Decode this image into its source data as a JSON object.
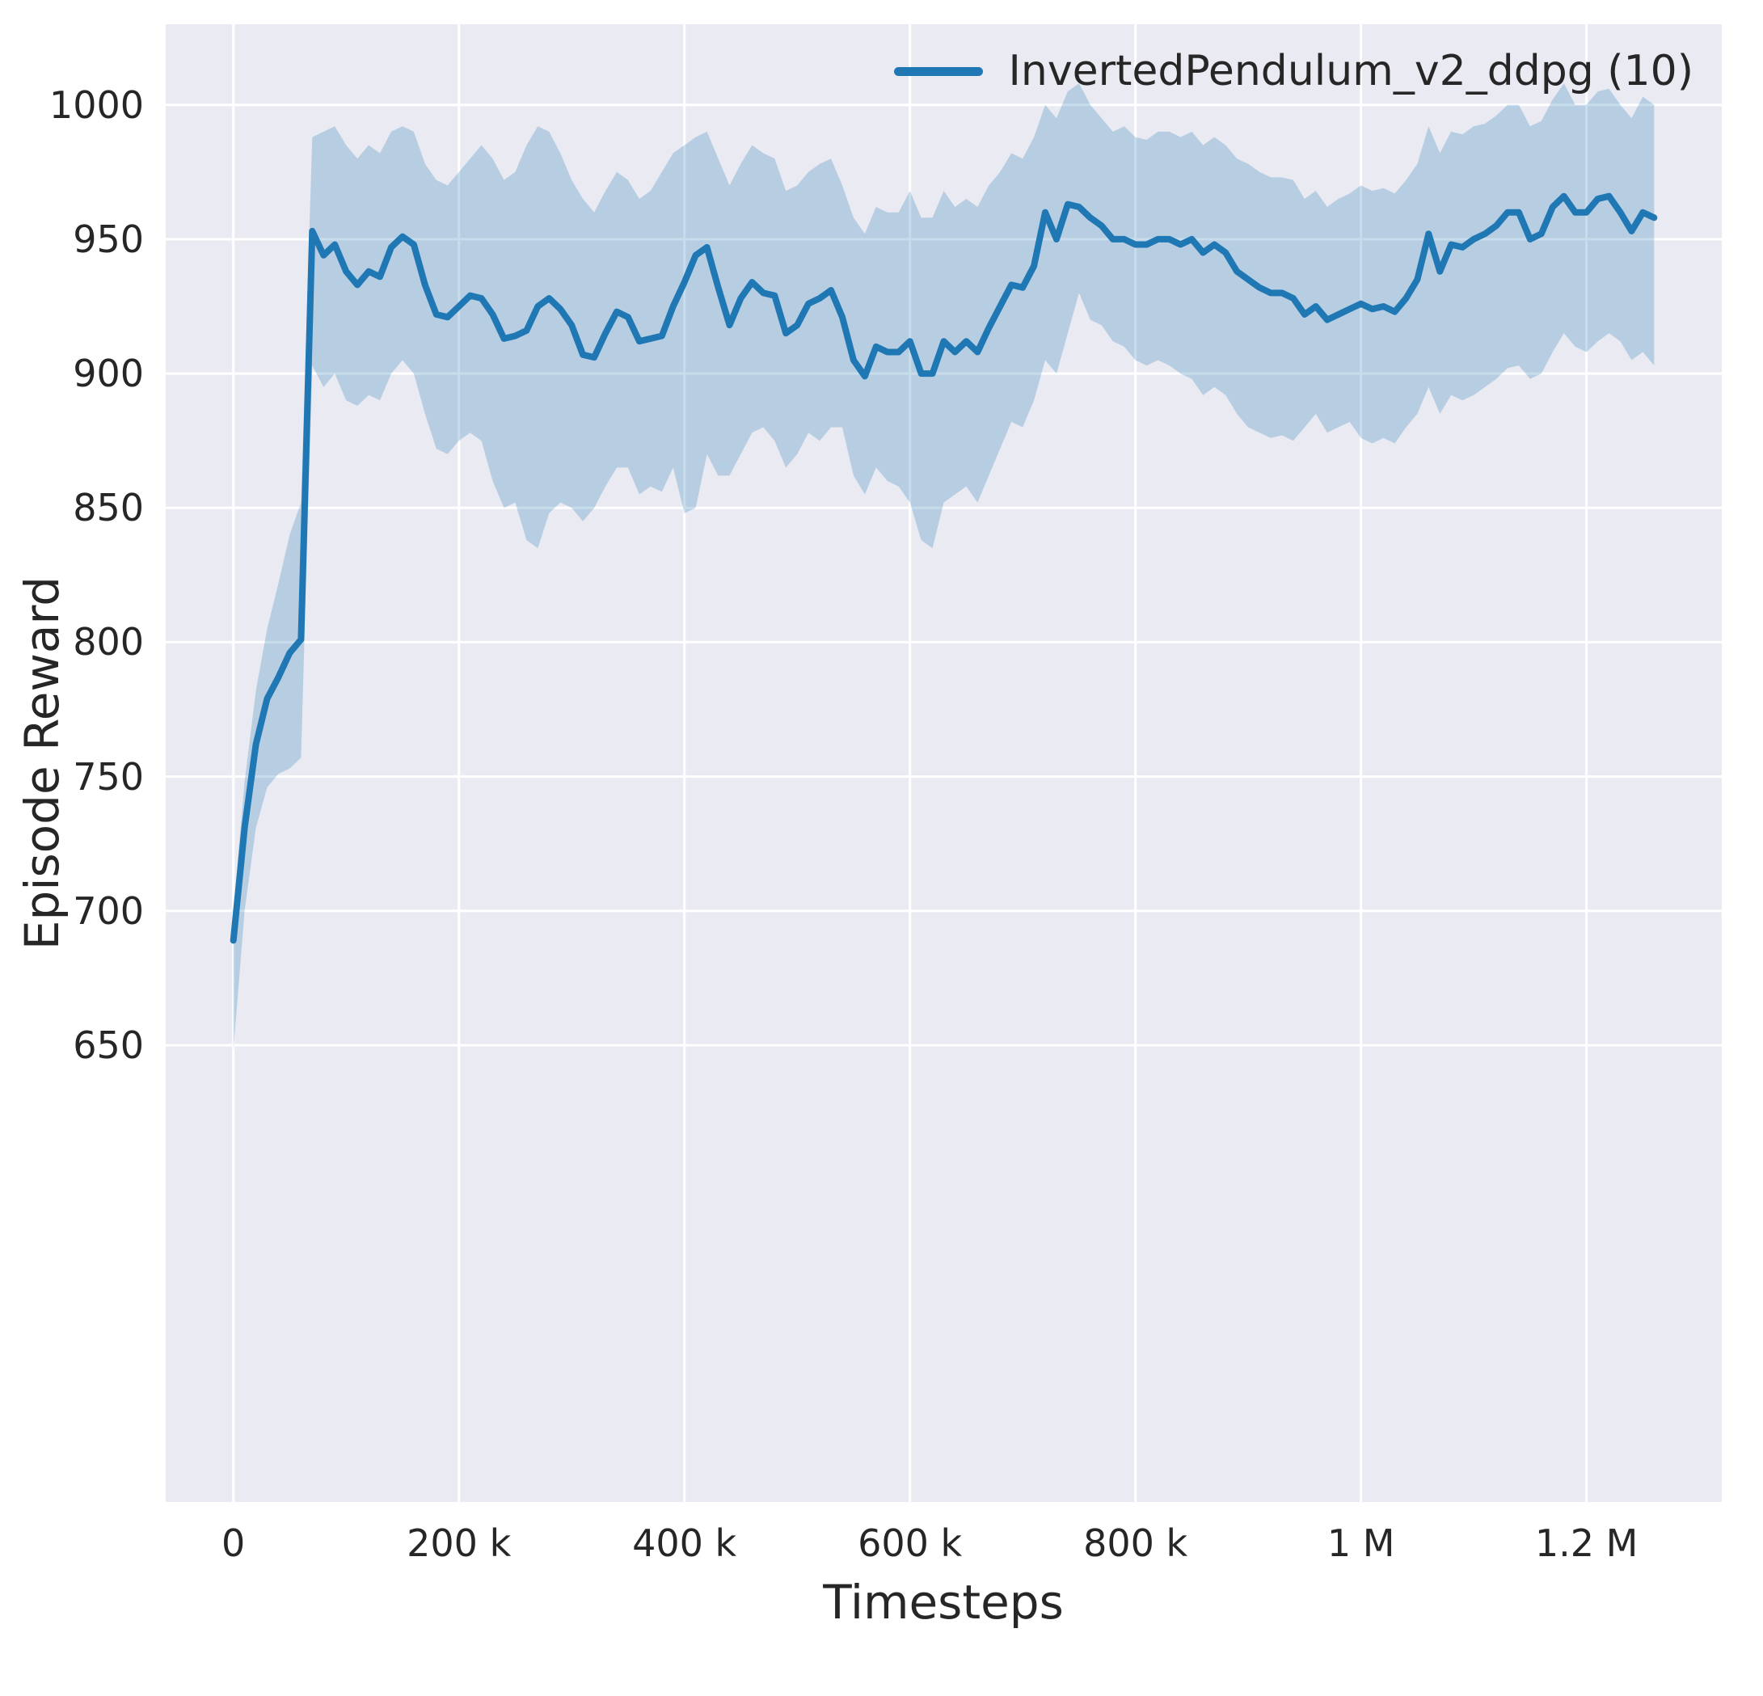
{
  "colors": {
    "line": "#1f77b4",
    "band": "#1f77b4",
    "band_opacity": 0.25,
    "plot_background": "#eaeaf2",
    "grid": "#ffffff",
    "text": "#262626"
  },
  "chart_data": {
    "type": "line",
    "title": "",
    "xlabel": "Timesteps",
    "ylabel": "Episode Reward",
    "grid": true,
    "legend_position": "upper right",
    "x_units": "timesteps (values stored in thousands)",
    "xlim_thousands": [
      -60,
      1320
    ],
    "ylim": [
      480,
      1030
    ],
    "xticks": {
      "values_thousands": [
        0,
        200,
        400,
        600,
        800,
        1000,
        1200
      ],
      "labels": [
        "0",
        "200 k",
        "400 k",
        "600 k",
        "800 k",
        "1 M",
        "1.2 M"
      ]
    },
    "yticks": {
      "values": [
        650,
        700,
        750,
        800,
        850,
        900,
        950,
        1000
      ],
      "labels": [
        "650",
        "700",
        "750",
        "800",
        "850",
        "900",
        "950",
        "1000"
      ]
    },
    "series": [
      {
        "name": "InvertedPendulum_v2_ddpg (10)",
        "color": "#1f77b4",
        "x_thousands": [
          0,
          10,
          20,
          30,
          40,
          50,
          60,
          70,
          80,
          90,
          100,
          110,
          120,
          130,
          140,
          150,
          160,
          170,
          180,
          190,
          200,
          210,
          220,
          230,
          240,
          250,
          260,
          270,
          280,
          290,
          300,
          310,
          320,
          330,
          340,
          350,
          360,
          370,
          380,
          390,
          400,
          410,
          420,
          430,
          440,
          450,
          460,
          470,
          480,
          490,
          500,
          510,
          520,
          530,
          540,
          550,
          560,
          570,
          580,
          590,
          600,
          610,
          620,
          630,
          640,
          650,
          660,
          670,
          680,
          690,
          700,
          710,
          720,
          730,
          740,
          750,
          760,
          770,
          780,
          790,
          800,
          810,
          820,
          830,
          840,
          850,
          860,
          870,
          880,
          890,
          900,
          910,
          920,
          930,
          940,
          950,
          960,
          970,
          980,
          990,
          1000,
          1010,
          1020,
          1030,
          1040,
          1050,
          1060,
          1070,
          1080,
          1090,
          1100,
          1110,
          1120,
          1130,
          1140,
          1150,
          1160,
          1170,
          1180,
          1190,
          1200,
          1210,
          1220,
          1230,
          1240,
          1250,
          1260
        ],
        "mean": [
          689,
          731,
          762,
          779,
          787,
          796,
          801,
          953,
          944,
          948,
          938,
          933,
          938,
          936,
          947,
          951,
          948,
          933,
          922,
          921,
          925,
          929,
          928,
          922,
          913,
          914,
          916,
          925,
          928,
          924,
          918,
          907,
          906,
          915,
          923,
          921,
          912,
          913,
          914,
          925,
          934,
          944,
          947,
          932,
          918,
          928,
          934,
          930,
          929,
          915,
          918,
          926,
          928,
          931,
          921,
          905,
          899,
          910,
          908,
          908,
          912,
          900,
          900,
          912,
          908,
          912,
          908,
          917,
          925,
          933,
          932,
          940,
          960,
          950,
          963,
          962,
          958,
          955,
          950,
          950,
          948,
          948,
          950,
          950,
          948,
          950,
          945,
          948,
          945,
          938,
          935,
          932,
          930,
          930,
          928,
          922,
          925,
          920,
          922,
          924,
          926,
          924,
          925,
          923,
          928,
          935,
          952,
          938,
          948,
          947,
          950,
          952,
          955,
          960,
          960,
          950,
          952,
          962,
          966,
          960,
          960,
          965,
          966,
          960,
          953,
          960,
          958
        ],
        "band_lower": [
          648,
          700,
          731,
          746,
          751,
          753,
          757,
          903,
          895,
          900,
          890,
          888,
          892,
          890,
          900,
          905,
          900,
          885,
          872,
          870,
          875,
          878,
          875,
          860,
          850,
          852,
          838,
          835,
          848,
          852,
          850,
          845,
          850,
          858,
          865,
          865,
          855,
          858,
          856,
          865,
          848,
          850,
          870,
          862,
          862,
          870,
          878,
          880,
          875,
          865,
          870,
          878,
          875,
          880,
          880,
          862,
          855,
          865,
          860,
          858,
          852,
          838,
          835,
          852,
          855,
          858,
          852,
          862,
          872,
          882,
          880,
          890,
          905,
          900,
          915,
          930,
          920,
          918,
          912,
          910,
          905,
          903,
          905,
          903,
          900,
          898,
          892,
          895,
          892,
          885,
          880,
          878,
          876,
          877,
          875,
          880,
          885,
          878,
          880,
          882,
          876,
          874,
          876,
          874,
          880,
          885,
          895,
          885,
          892,
          890,
          892,
          895,
          898,
          902,
          903,
          898,
          900,
          908,
          915,
          910,
          908,
          912,
          915,
          912,
          905,
          908,
          903
        ],
        "band_upper": [
          700,
          748,
          782,
          805,
          822,
          840,
          852,
          988,
          990,
          992,
          985,
          980,
          985,
          982,
          990,
          992,
          990,
          978,
          972,
          970,
          975,
          980,
          985,
          980,
          972,
          975,
          985,
          992,
          990,
          982,
          972,
          965,
          960,
          968,
          975,
          972,
          965,
          968,
          975,
          982,
          985,
          988,
          990,
          980,
          970,
          978,
          985,
          982,
          980,
          968,
          970,
          975,
          978,
          980,
          970,
          958,
          952,
          962,
          960,
          960,
          968,
          958,
          958,
          968,
          962,
          965,
          962,
          970,
          975,
          982,
          980,
          988,
          1000,
          995,
          1005,
          1008,
          1000,
          995,
          990,
          992,
          988,
          987,
          990,
          990,
          988,
          990,
          985,
          988,
          985,
          980,
          978,
          975,
          973,
          973,
          972,
          965,
          968,
          962,
          965,
          967,
          970,
          968,
          969,
          967,
          972,
          978,
          992,
          982,
          990,
          989,
          992,
          993,
          996,
          1000,
          1000,
          992,
          994,
          1002,
          1008,
          1000,
          1000,
          1005,
          1006,
          1000,
          995,
          1003,
          1000
        ]
      }
    ]
  }
}
